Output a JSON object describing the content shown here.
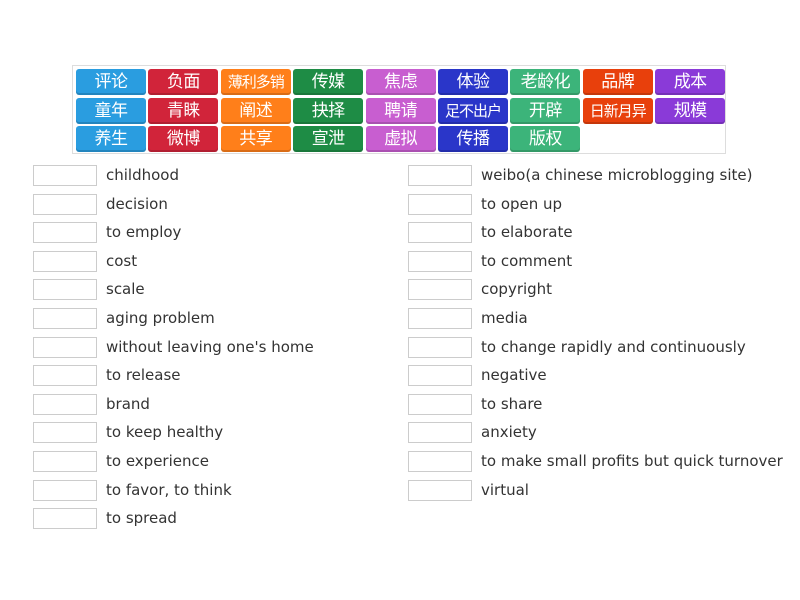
{
  "tiles": [
    {
      "text": "评论",
      "color": "#2a9de0"
    },
    {
      "text": "负面",
      "color": "#d1243a"
    },
    {
      "text": "薄利多销",
      "color": "#ff7f1a"
    },
    {
      "text": "传媒",
      "color": "#1e8c45"
    },
    {
      "text": "焦虑",
      "color": "#c85ed0"
    },
    {
      "text": "体验",
      "color": "#2a36c9"
    },
    {
      "text": "老龄化",
      "color": "#3cb47a"
    },
    {
      "text": "品牌",
      "color": "#e8400c"
    },
    {
      "text": "成本",
      "color": "#8a3ad8"
    },
    {
      "text": "童年",
      "color": "#2a9de0"
    },
    {
      "text": "青睐",
      "color": "#d1243a"
    },
    {
      "text": "阐述",
      "color": "#ff7f1a"
    },
    {
      "text": "抉择",
      "color": "#1e8c45"
    },
    {
      "text": "聘请",
      "color": "#c85ed0"
    },
    {
      "text": "足不出户",
      "color": "#2a36c9"
    },
    {
      "text": "开辟",
      "color": "#3cb47a"
    },
    {
      "text": "日新月异",
      "color": "#e8400c"
    },
    {
      "text": "规模",
      "color": "#8a3ad8"
    },
    {
      "text": "养生",
      "color": "#2a9de0"
    },
    {
      "text": "微博",
      "color": "#d1243a"
    },
    {
      "text": "共享",
      "color": "#ff7f1a"
    },
    {
      "text": "宣泄",
      "color": "#1e8c45"
    },
    {
      "text": "虚拟",
      "color": "#c85ed0"
    },
    {
      "text": "传播",
      "color": "#2a36c9"
    },
    {
      "text": "版权",
      "color": "#3cb47a"
    }
  ],
  "left": [
    "childhood",
    "decision",
    "to employ",
    "cost",
    "scale",
    "aging problem",
    "without leaving one's home",
    "to release",
    "brand",
    "to keep healthy",
    "to experience",
    "to favor, to think",
    "to spread"
  ],
  "right": [
    "weibo(a chinese microblogging site)",
    "to open up",
    "to elaborate",
    "to comment",
    "copyright",
    "media",
    "to change rapidly and continuously",
    "negative",
    "to share",
    "anxiety",
    "to make small profits but quick turnover",
    "virtual"
  ]
}
